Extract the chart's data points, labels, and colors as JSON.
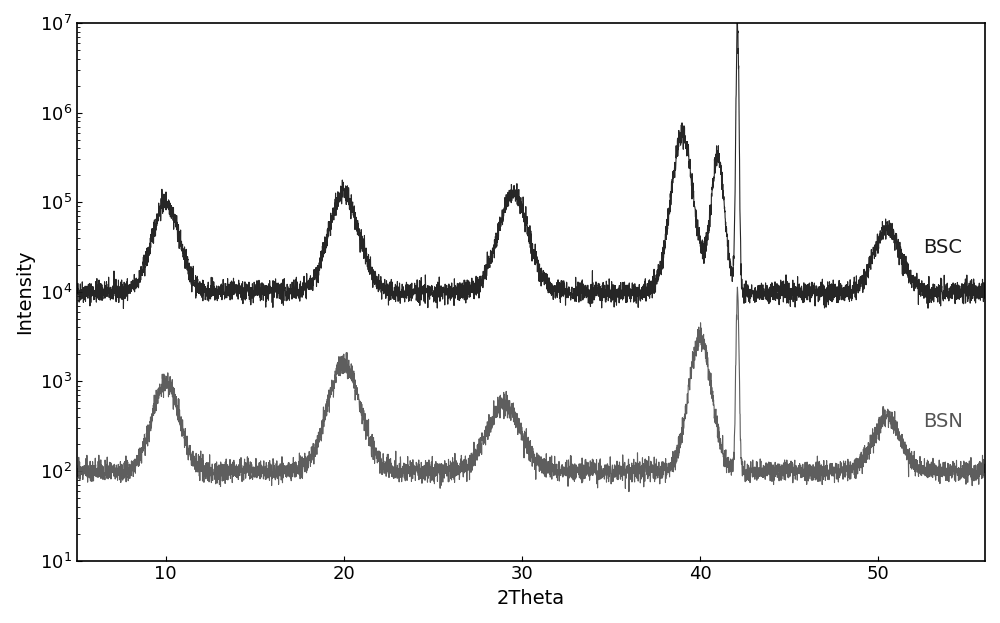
{
  "title": "",
  "xlabel": "2Theta",
  "ylabel": "Intensity",
  "xlim": [
    5,
    56
  ],
  "ylim_log": [
    10,
    10000000.0
  ],
  "bsc_color": "#1a1a1a",
  "bsn_color": "#555555",
  "bsc_label": "BSC",
  "bsn_label": "BSN",
  "bsc_baseline_log": 4.0,
  "bsn_baseline_log": 2.0,
  "figsize": [
    10.0,
    6.23
  ],
  "dpi": 100,
  "tick_fontsize": 13,
  "label_fontsize": 14,
  "annotation_fontsize": 14,
  "spine_color": "#000000"
}
